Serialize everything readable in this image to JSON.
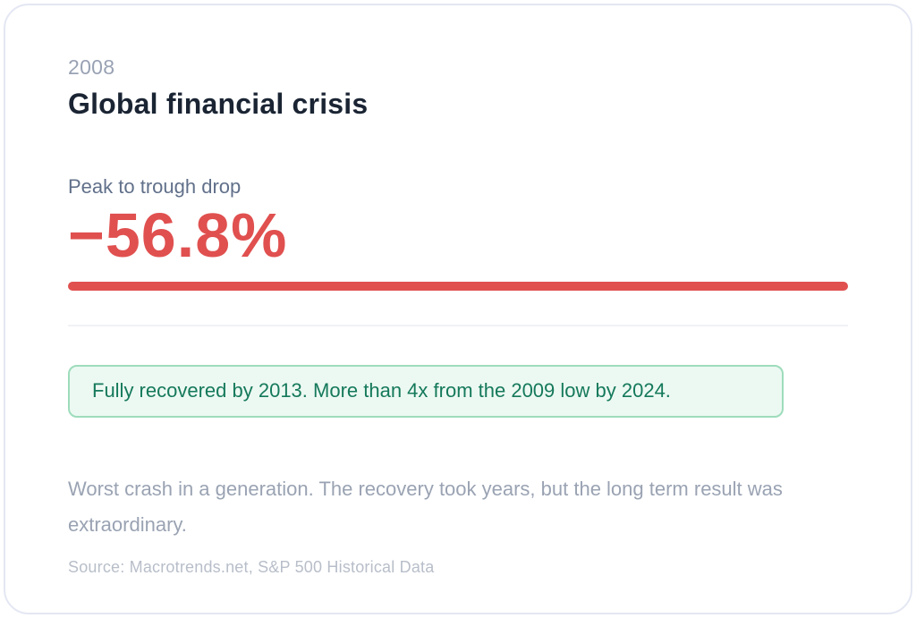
{
  "colors": {
    "accent_red": "#E0504F",
    "green_text": "#15795B",
    "green_bg": "#ECF9F2",
    "green_border": "#9EDCBC",
    "title_dark": "#1A2433",
    "muted_gray": "#9AA3B3",
    "faint_gray": "#B8BEC9",
    "card_border": "#E4E7F3",
    "divider_gray": "#F1F2F5",
    "slate_label": "#61708A"
  },
  "card": {
    "year": "2008",
    "title": "Global financial crisis",
    "stat_label": "Peak to trough drop",
    "stat_value": "−56.8%",
    "callout_text": "Fully recovered by 2013. More than 4x from the 2009 low by 2024.",
    "description": "Worst crash in a generation. The recovery took years, but the long term result was extraordinary.",
    "source": "Source: Macrotrends.net, S&P 500 Historical Data"
  }
}
